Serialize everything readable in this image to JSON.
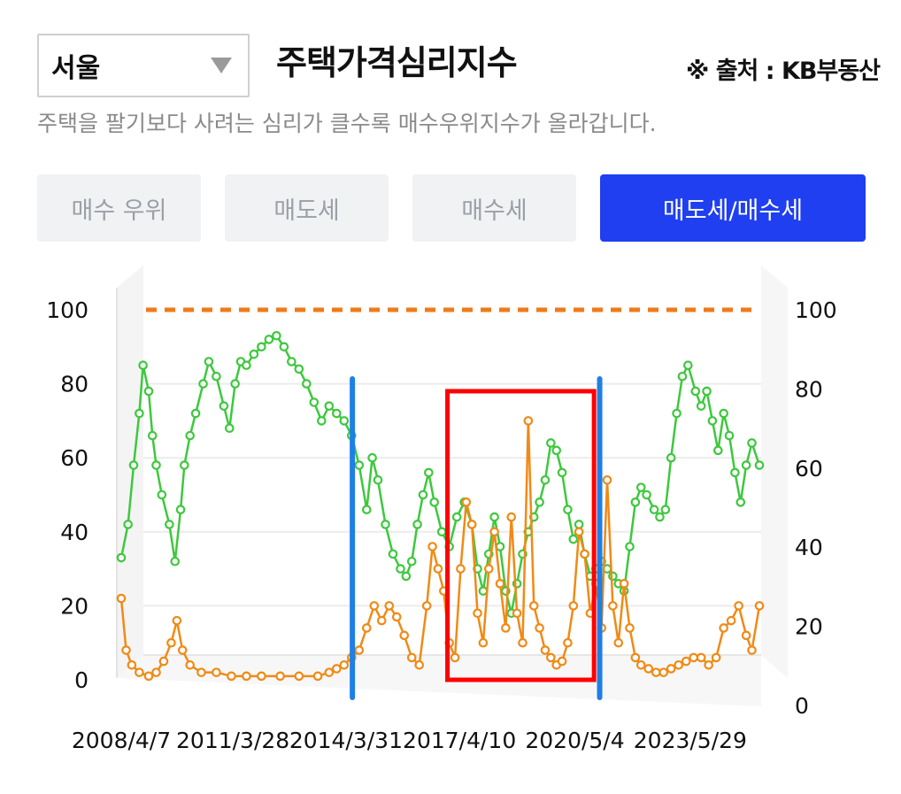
{
  "header": {
    "region": "서울",
    "title": "주택가격심리지수",
    "source": "※ 출처 : KB부동산",
    "description": "주택을 팔기보다 사려는 심리가 클수록 매수우위지수가 올라갑니다."
  },
  "tabs": [
    {
      "label": "매수 우위",
      "active": false
    },
    {
      "label": "매도세",
      "active": false
    },
    {
      "label": "매수세",
      "active": false
    },
    {
      "label": "매도세/매수세",
      "active": true
    }
  ],
  "colors": {
    "green_series": "#3ec83e",
    "orange_series": "#f08a16",
    "reference_line": "#ef7a1a",
    "annotation_box": "#ff0000",
    "annotation_lines": "#1e7fe6",
    "active_tab": "#1f3ff0"
  },
  "chart_data": {
    "type": "line",
    "x_tick_labels": [
      "2008/4/7",
      "2011/3/28",
      "2014/3/31",
      "2017/4/10",
      "2020/5/4",
      "2023/5/29"
    ],
    "x_tick_years": [
      2008.27,
      2011.24,
      2014.25,
      2017.27,
      2020.34,
      2023.41
    ],
    "x_range": [
      2008.27,
      2025.25
    ],
    "y_left": {
      "ticks": [
        0,
        20,
        40,
        60,
        80,
        100
      ],
      "range": [
        0,
        100
      ]
    },
    "y_right": {
      "ticks": [
        0,
        20,
        40,
        60,
        80,
        100
      ],
      "range": [
        0,
        100
      ]
    },
    "reference_line": {
      "y": 100,
      "style": "dashed"
    },
    "series": [
      {
        "color": "#3ec83e",
        "x": [
          2008.27,
          2008.45,
          2008.6,
          2008.75,
          2008.85,
          2009.0,
          2009.1,
          2009.2,
          2009.35,
          2009.55,
          2009.7,
          2009.85,
          2009.95,
          2010.1,
          2010.25,
          2010.45,
          2010.6,
          2010.8,
          2011.0,
          2011.15,
          2011.3,
          2011.45,
          2011.6,
          2011.8,
          2012.0,
          2012.2,
          2012.4,
          2012.6,
          2012.8,
          2013.0,
          2013.2,
          2013.4,
          2013.6,
          2013.8,
          2014.0,
          2014.2,
          2014.4,
          2014.6,
          2014.8,
          2014.95,
          2015.1,
          2015.3,
          2015.5,
          2015.7,
          2015.85,
          2016.0,
          2016.15,
          2016.3,
          2016.45,
          2016.6,
          2016.8,
          2017.0,
          2017.2,
          2017.4,
          2017.6,
          2017.75,
          2017.9,
          2018.05,
          2018.2,
          2018.35,
          2018.5,
          2018.65,
          2018.8,
          2018.95,
          2019.1,
          2019.25,
          2019.4,
          2019.55,
          2019.7,
          2019.85,
          2020.0,
          2020.15,
          2020.3,
          2020.45,
          2020.6,
          2020.75,
          2020.9,
          2021.05,
          2021.2,
          2021.35,
          2021.5,
          2021.65,
          2021.8,
          2021.95,
          2022.1,
          2022.25,
          2022.45,
          2022.6,
          2022.75,
          2022.9,
          2023.05,
          2023.2,
          2023.35,
          2023.55,
          2023.7,
          2023.85,
          2024.0,
          2024.15,
          2024.3,
          2024.45,
          2024.6,
          2024.75,
          2024.9,
          2025.05,
          2025.25
        ],
        "values": [
          33,
          42,
          58,
          72,
          85,
          78,
          66,
          58,
          50,
          42,
          32,
          46,
          58,
          66,
          72,
          80,
          86,
          82,
          74,
          68,
          80,
          86,
          85,
          88,
          90,
          92,
          93,
          90,
          86,
          84,
          80,
          75,
          70,
          74,
          72,
          70,
          66,
          58,
          46,
          60,
          54,
          42,
          34,
          30,
          28,
          32,
          42,
          50,
          56,
          48,
          40,
          36,
          44,
          48,
          42,
          30,
          24,
          34,
          44,
          36,
          24,
          18,
          26,
          34,
          40,
          44,
          48,
          54,
          64,
          62,
          56,
          46,
          38,
          42,
          34,
          28,
          30,
          32,
          30,
          28,
          26,
          24,
          36,
          48,
          52,
          50,
          46,
          44,
          46,
          60,
          72,
          82,
          85,
          78,
          74,
          78,
          70,
          62,
          72,
          66,
          56,
          48,
          58,
          64,
          58
        ]
      },
      {
        "color": "#f08a16",
        "x": [
          2008.27,
          2008.4,
          2008.55,
          2008.75,
          2009.0,
          2009.2,
          2009.4,
          2009.6,
          2009.75,
          2009.9,
          2010.1,
          2010.4,
          2010.8,
          2011.2,
          2011.6,
          2012.0,
          2012.5,
          2013.0,
          2013.5,
          2013.8,
          2014.0,
          2014.2,
          2014.4,
          2014.6,
          2014.8,
          2015.0,
          2015.2,
          2015.4,
          2015.6,
          2015.8,
          2016.0,
          2016.2,
          2016.4,
          2016.55,
          2016.7,
          2016.85,
          2017.0,
          2017.15,
          2017.3,
          2017.45,
          2017.6,
          2017.75,
          2017.9,
          2018.05,
          2018.2,
          2018.35,
          2018.5,
          2018.65,
          2018.8,
          2018.95,
          2019.1,
          2019.25,
          2019.4,
          2019.55,
          2019.7,
          2019.85,
          2020.0,
          2020.15,
          2020.3,
          2020.45,
          2020.6,
          2020.75,
          2020.9,
          2021.05,
          2021.2,
          2021.35,
          2021.5,
          2021.65,
          2021.8,
          2021.95,
          2022.1,
          2022.3,
          2022.5,
          2022.7,
          2022.9,
          2023.1,
          2023.3,
          2023.5,
          2023.7,
          2023.9,
          2024.1,
          2024.3,
          2024.5,
          2024.7,
          2024.9,
          2025.05,
          2025.25
        ],
        "values": [
          22,
          8,
          4,
          2,
          1,
          2,
          5,
          10,
          16,
          8,
          4,
          2,
          2,
          1,
          1,
          1,
          1,
          1,
          1,
          2,
          3,
          4,
          6,
          8,
          14,
          20,
          16,
          20,
          17,
          12,
          6,
          4,
          20,
          36,
          30,
          24,
          10,
          6,
          30,
          48,
          42,
          18,
          10,
          30,
          40,
          26,
          14,
          44,
          18,
          10,
          70,
          20,
          14,
          8,
          6,
          4,
          5,
          10,
          20,
          40,
          34,
          18,
          26,
          14,
          54,
          20,
          10,
          26,
          14,
          6,
          4,
          3,
          2,
          2,
          3,
          4,
          5,
          6,
          6,
          4,
          6,
          14,
          16,
          20,
          12,
          8,
          20
        ]
      }
    ],
    "annotations": [
      {
        "type": "rectangle",
        "x_range": [
          2016.95,
          2020.85
        ],
        "y_range": [
          0,
          78
        ]
      },
      {
        "type": "vertical_line",
        "x": 2014.42
      },
      {
        "type": "vertical_line",
        "x": 2021.0
      }
    ]
  }
}
